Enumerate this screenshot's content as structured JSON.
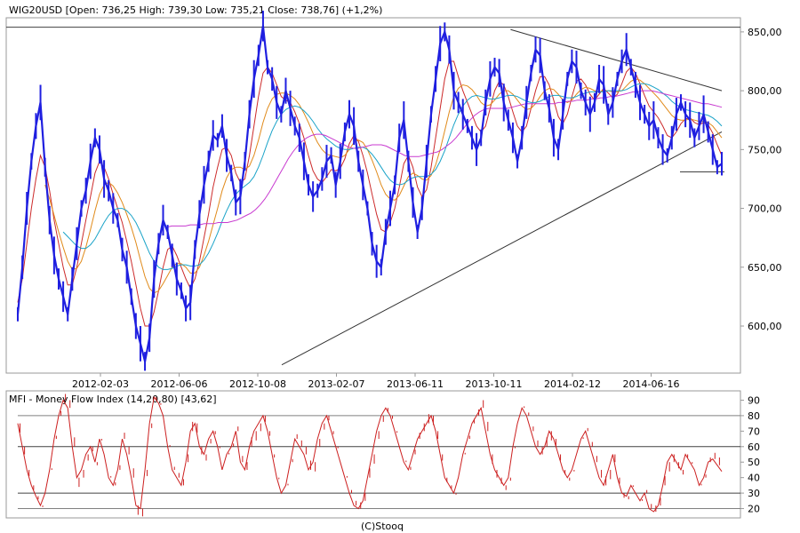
{
  "chart_data": [
    {
      "type": "candlestick",
      "title": "WIG20USD [Open: 736,25  High: 739,30  Low: 735,21  Close: 738,76]  (+1,2%)",
      "ylim": [
        560,
        862
      ],
      "y_ticks": [
        "600,00",
        "650,00",
        "700,00",
        "750,00",
        "800,00",
        "850,00"
      ],
      "y_tick_values": [
        600,
        650,
        700,
        750,
        800,
        850
      ],
      "x_tick_labels": [
        "2012-02-03",
        "2012-06-06",
        "2012-10-08",
        "2013-02-07",
        "2013-06-11",
        "2013-10-11",
        "2014-02-12",
        "2014-06-16"
      ],
      "grid": false,
      "series": [
        {
          "color": "#1f1fe0",
          "values": [
            610,
            650,
            700,
            740,
            770,
            790,
            735,
            690,
            660,
            640,
            625,
            610,
            640,
            670,
            700,
            715,
            740,
            760,
            750,
            725,
            715,
            700,
            690,
            665,
            650,
            625,
            600,
            585,
            570,
            590,
            640,
            670,
            690,
            680,
            660,
            640,
            630,
            615,
            620,
            665,
            695,
            720,
            740,
            762,
            758,
            770,
            745,
            730,
            705,
            710,
            740,
            780,
            810,
            830,
            855,
            820,
            810,
            790,
            780,
            800,
            785,
            770,
            760,
            740,
            720,
            710,
            715,
            725,
            740,
            745,
            720,
            740,
            765,
            780,
            770,
            740,
            720,
            700,
            670,
            655,
            650,
            680,
            700,
            720,
            760,
            775,
            740,
            705,
            680,
            700,
            740,
            780,
            810,
            840,
            850,
            835,
            800,
            790,
            780,
            770,
            760,
            750,
            760,
            790,
            810,
            820,
            815,
            790,
            775,
            760,
            740,
            760,
            790,
            815,
            835,
            830,
            800,
            785,
            760,
            750,
            780,
            810,
            825,
            820,
            800,
            790,
            780,
            790,
            810,
            805,
            780,
            790,
            810,
            825,
            835,
            820,
            805,
            790,
            780,
            770,
            775,
            760,
            750,
            745,
            760,
            780,
            790,
            780,
            775,
            760,
            770,
            780,
            765,
            750,
            735,
            738
          ]
        }
      ],
      "moving_averages": [
        {
          "color": "#cc2a2a",
          "values": [
            620,
            640,
            670,
            700,
            725,
            745,
            735,
            715,
            690,
            670,
            650,
            635,
            635,
            650,
            670,
            690,
            710,
            730,
            740,
            735,
            725,
            712,
            700,
            688,
            672,
            655,
            635,
            615,
            600,
            600,
            612,
            630,
            650,
            665,
            668,
            660,
            650,
            640,
            632,
            640,
            655,
            675,
            695,
            718,
            735,
            750,
            752,
            745,
            730,
            722,
            725,
            745,
            770,
            795,
            815,
            820,
            815,
            805,
            795,
            792,
            790,
            782,
            772,
            760,
            745,
            732,
            725,
            722,
            727,
            733,
            732,
            734,
            742,
            755,
            762,
            757,
            745,
            730,
            712,
            695,
            682,
            680,
            688,
            700,
            718,
            738,
            745,
            735,
            718,
            710,
            716,
            735,
            760,
            785,
            810,
            825,
            825,
            812,
            800,
            790,
            780,
            770,
            765,
            770,
            785,
            800,
            808,
            805,
            795,
            782,
            770,
            765,
            770,
            785,
            800,
            812,
            812,
            805,
            792,
            778,
            772,
            780,
            795,
            808,
            810,
            805,
            797,
            792,
            797,
            802,
            798,
            794,
            797,
            806,
            816,
            820,
            815,
            806,
            796,
            787,
            782,
            777,
            770,
            762,
            760,
            765,
            772,
            776,
            777,
            773,
            771,
            773,
            771,
            764,
            754,
            745
          ]
        },
        {
          "color": "#e08a1a",
          "values": [
            null,
            null,
            null,
            null,
            null,
            null,
            720,
            708,
            694,
            680,
            667,
            655,
            648,
            649,
            655,
            667,
            682,
            698,
            712,
            720,
            722,
            719,
            713,
            705,
            695,
            684,
            671,
            656,
            642,
            632,
            628,
            630,
            636,
            643,
            650,
            653,
            653,
            650,
            645,
            645,
            650,
            660,
            672,
            686,
            700,
            715,
            726,
            733,
            735,
            735,
            733,
            736,
            745,
            758,
            773,
            785,
            793,
            797,
            798,
            798,
            796,
            793,
            788,
            781,
            773,
            764,
            756,
            750,
            746,
            745,
            744,
            743,
            745,
            750,
            756,
            758,
            756,
            750,
            741,
            731,
            720,
            712,
            708,
            707,
            711,
            719,
            727,
            730,
            728,
            725,
            724,
            728,
            737,
            750,
            766,
            782,
            795,
            802,
            805,
            804,
            801,
            796,
            790,
            787,
            788,
            792,
            797,
            800,
            800,
            797,
            792,
            787,
            784,
            785,
            789,
            795,
            800,
            802,
            801,
            797,
            792,
            790,
            792,
            797,
            801,
            803,
            802,
            800,
            799,
            800,
            800,
            799,
            799,
            800,
            804,
            808,
            810,
            809,
            806,
            802,
            798,
            794,
            789,
            784,
            779,
            776,
            775,
            775,
            776,
            775,
            774,
            774,
            773,
            770,
            765,
            760
          ]
        },
        {
          "color": "#1aa3c8",
          "values": [
            null,
            null,
            null,
            null,
            null,
            null,
            null,
            null,
            null,
            null,
            680,
            676,
            672,
            668,
            666,
            666,
            669,
            674,
            681,
            688,
            694,
            698,
            700,
            700,
            698,
            694,
            688,
            680,
            671,
            662,
            655,
            650,
            648,
            648,
            649,
            651,
            652,
            652,
            651,
            651,
            652,
            656,
            662,
            670,
            679,
            689,
            698,
            706,
            712,
            716,
            719,
            722,
            727,
            735,
            745,
            756,
            766,
            774,
            780,
            784,
            786,
            787,
            786,
            783,
            779,
            774,
            768,
            763,
            759,
            756,
            753,
            751,
            750,
            750,
            751,
            752,
            752,
            750,
            746,
            741,
            735,
            729,
            724,
            721,
            720,
            721,
            724,
            726,
            727,
            727,
            727,
            729,
            733,
            740,
            749,
            760,
            771,
            780,
            787,
            792,
            795,
            796,
            795,
            794,
            793,
            793,
            794,
            795,
            796,
            796,
            795,
            793,
            791,
            790,
            790,
            791,
            793,
            795,
            796,
            796,
            795,
            794,
            794,
            795,
            797,
            798,
            799,
            799,
            799,
            799,
            800,
            800,
            800,
            800,
            801,
            803,
            805,
            806,
            806,
            805,
            803,
            801,
            798,
            795,
            791,
            788,
            786,
            784,
            783,
            782,
            781,
            780,
            779,
            777,
            774,
            770
          ]
        },
        {
          "color": "#c83ad0",
          "values": [
            null,
            null,
            null,
            null,
            null,
            null,
            null,
            null,
            null,
            null,
            null,
            null,
            null,
            null,
            null,
            null,
            null,
            null,
            null,
            null,
            null,
            null,
            null,
            null,
            null,
            null,
            null,
            null,
            null,
            null,
            null,
            null,
            684,
            685,
            685,
            685,
            685,
            686,
            686,
            686,
            687,
            687,
            687,
            688,
            688,
            688,
            689,
            690,
            692,
            694,
            696,
            699,
            703,
            708,
            714,
            721,
            728,
            735,
            742,
            748,
            753,
            757,
            760,
            762,
            763,
            763,
            762,
            760,
            758,
            756,
            754,
            752,
            751,
            751,
            752,
            753,
            754,
            754,
            754,
            753,
            751,
            749,
            747,
            745,
            744,
            744,
            744,
            745,
            746,
            747,
            748,
            750,
            753,
            756,
            760,
            765,
            770,
            775,
            779,
            782,
            784,
            785,
            785,
            785,
            785,
            785,
            786,
            787,
            788,
            789,
            789,
            789,
            789,
            789,
            789,
            789,
            790,
            790,
            791,
            791,
            792,
            792,
            792,
            793,
            793,
            794,
            794,
            795,
            795,
            796,
            797,
            798,
            799,
            799,
            800,
            800,
            800,
            799,
            798,
            797,
            796,
            795,
            794,
            793,
            792,
            791,
            790,
            789,
            789,
            788,
            787,
            786
          ]
        }
      ],
      "trendlines": [
        {
          "from": [
            60,
            567
          ],
          "to": [
            160,
            765
          ]
        },
        {
          "from": [
            112,
            852
          ],
          "to": [
            160,
            800
          ]
        }
      ],
      "support_level": 731,
      "resistance_level": 854
    },
    {
      "type": "line",
      "title": "MFI - Money Flow Index (14,20,80) [43,62]",
      "ylim": [
        14,
        96
      ],
      "y_ticks": [
        "20",
        "30",
        "40",
        "50",
        "60",
        "70",
        "80",
        "90"
      ],
      "y_tick_values": [
        20,
        30,
        40,
        50,
        60,
        70,
        80,
        90
      ],
      "reference_lines": [
        20,
        30,
        60,
        80
      ],
      "series": [
        {
          "color": "#cc1f1f",
          "values": [
            75,
            60,
            45,
            35,
            28,
            22,
            30,
            45,
            65,
            80,
            90,
            85,
            60,
            40,
            45,
            55,
            60,
            50,
            65,
            55,
            40,
            35,
            45,
            65,
            55,
            40,
            22,
            20,
            45,
            75,
            92,
            88,
            80,
            60,
            45,
            40,
            35,
            50,
            70,
            75,
            60,
            55,
            65,
            70,
            60,
            45,
            55,
            60,
            70,
            50,
            45,
            60,
            70,
            75,
            80,
            70,
            55,
            40,
            30,
            35,
            50,
            65,
            60,
            55,
            45,
            50,
            65,
            75,
            80,
            70,
            60,
            50,
            40,
            30,
            22,
            20,
            25,
            40,
            55,
            70,
            80,
            85,
            80,
            70,
            60,
            50,
            45,
            55,
            65,
            70,
            75,
            80,
            70,
            55,
            40,
            35,
            30,
            40,
            55,
            65,
            75,
            80,
            85,
            70,
            55,
            45,
            40,
            35,
            40,
            60,
            75,
            85,
            80,
            70,
            60,
            55,
            60,
            70,
            65,
            55,
            45,
            40,
            45,
            55,
            65,
            70,
            60,
            50,
            40,
            35,
            45,
            55,
            40,
            30,
            28,
            35,
            30,
            25,
            30,
            20,
            18,
            22,
            35,
            50,
            55,
            50,
            45,
            55,
            50,
            45,
            35,
            40,
            50,
            52,
            48,
            44
          ]
        }
      ]
    }
  ],
  "footer": {
    "credit": "(C)Stooq"
  }
}
